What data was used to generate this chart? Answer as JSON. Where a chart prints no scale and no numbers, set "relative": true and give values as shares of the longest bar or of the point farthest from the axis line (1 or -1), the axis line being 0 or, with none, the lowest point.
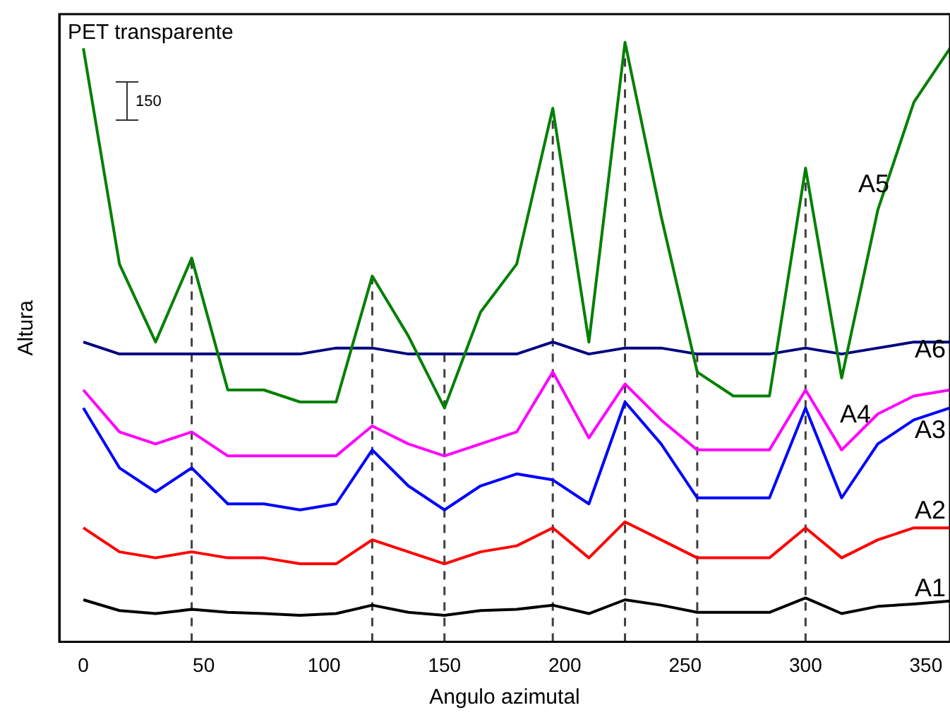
{
  "chart_data": {
    "type": "line",
    "title": "PET transparente",
    "xlabel": "Angulo azimutal",
    "ylabel": "Altura",
    "relative": true,
    "legend": false,
    "grid": false,
    "marker": "none",
    "line_style": "solid",
    "tick_labels": "x",
    "x": [
      0,
      15,
      30,
      45,
      60,
      75,
      90,
      105,
      120,
      135,
      150,
      165,
      180,
      195,
      210,
      225,
      240,
      255,
      270,
      285,
      300,
      315,
      330,
      345,
      360
    ],
    "xlim": [
      -10,
      360
    ],
    "xticks": [
      0,
      50,
      100,
      150,
      200,
      250,
      300,
      350
    ],
    "series": [
      {
        "name": "A1",
        "color": "#000000",
        "values": [
          0.07,
          0.052,
          0.047,
          0.054,
          0.049,
          0.047,
          0.044,
          0.047,
          0.061,
          0.049,
          0.044,
          0.052,
          0.054,
          0.061,
          0.047,
          0.07,
          0.061,
          0.049,
          0.049,
          0.049,
          0.073,
          0.047,
          0.059,
          0.063,
          0.068
        ]
      },
      {
        "name": "A2",
        "color": "#ff0000",
        "values": [
          0.19,
          0.15,
          0.14,
          0.15,
          0.14,
          0.14,
          0.13,
          0.13,
          0.17,
          0.15,
          0.13,
          0.15,
          0.16,
          0.19,
          0.14,
          0.2,
          0.17,
          0.14,
          0.14,
          0.14,
          0.19,
          0.14,
          0.17,
          0.19,
          0.19
        ]
      },
      {
        "name": "A3",
        "color": "#0000ff",
        "values": [
          0.39,
          0.29,
          0.25,
          0.29,
          0.23,
          0.23,
          0.22,
          0.23,
          0.32,
          0.26,
          0.22,
          0.26,
          0.28,
          0.27,
          0.23,
          0.4,
          0.33,
          0.24,
          0.24,
          0.24,
          0.39,
          0.24,
          0.33,
          0.37,
          0.39
        ]
      },
      {
        "name": "A4",
        "color": "#ff00ff",
        "values": [
          0.42,
          0.35,
          0.33,
          0.35,
          0.31,
          0.31,
          0.31,
          0.31,
          0.36,
          0.33,
          0.31,
          0.33,
          0.35,
          0.45,
          0.34,
          0.43,
          0.37,
          0.32,
          0.32,
          0.32,
          0.42,
          0.32,
          0.38,
          0.41,
          0.42
        ]
      },
      {
        "name": "A5",
        "color": "#008000",
        "values": [
          0.99,
          0.63,
          0.5,
          0.64,
          0.42,
          0.42,
          0.4,
          0.4,
          0.61,
          0.51,
          0.39,
          0.55,
          0.63,
          0.89,
          0.5,
          1,
          0.71,
          0.45,
          0.41,
          0.41,
          0.79,
          0.44,
          0.72,
          0.9,
          0.99
        ]
      },
      {
        "name": "A6",
        "color": "#000080",
        "values": [
          0.5,
          0.48,
          0.48,
          0.48,
          0.48,
          0.48,
          0.48,
          0.49,
          0.49,
          0.48,
          0.48,
          0.48,
          0.48,
          0.5,
          0.48,
          0.49,
          0.49,
          0.48,
          0.48,
          0.48,
          0.49,
          0.48,
          0.49,
          0.5,
          0.5
        ]
      }
    ],
    "ref_lines": [
      {
        "axis": "x",
        "value": 45,
        "color": "#404040",
        "line_style": "dashed"
      },
      {
        "axis": "x",
        "value": 120,
        "color": "#404040",
        "line_style": "dashed"
      },
      {
        "axis": "x",
        "value": 150,
        "color": "#404040",
        "line_style": "dashed"
      },
      {
        "axis": "x",
        "value": 195,
        "color": "#404040",
        "line_style": "dashed"
      },
      {
        "axis": "x",
        "value": 225,
        "color": "#404040",
        "line_style": "dashed"
      },
      {
        "axis": "x",
        "value": 255,
        "color": "#404040",
        "line_style": "dashed"
      },
      {
        "axis": "x",
        "value": 300,
        "color": "#404040",
        "line_style": "dashed"
      }
    ],
    "annotations": [
      "150"
    ]
  }
}
